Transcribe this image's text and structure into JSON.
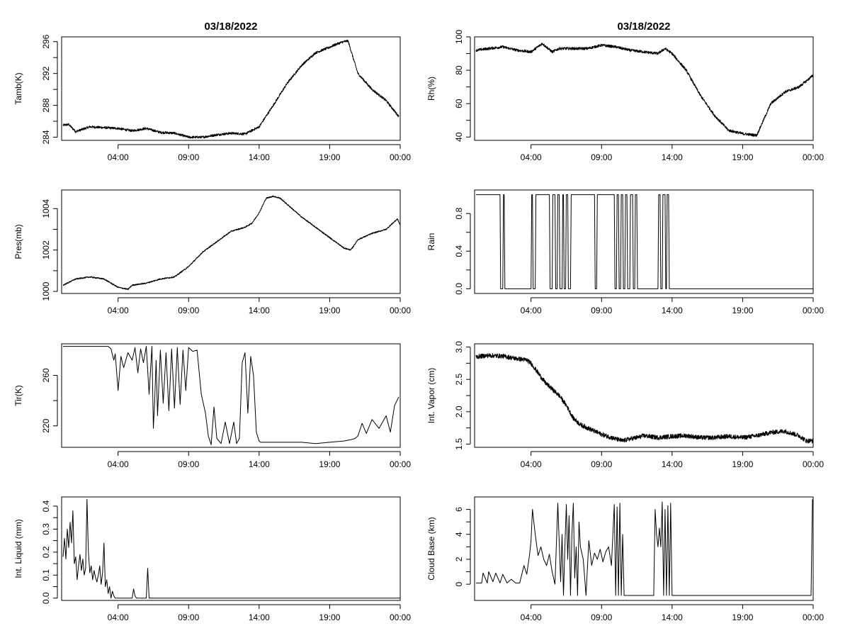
{
  "figure": {
    "date_title": "03/18/2022"
  },
  "chart_data": [
    {
      "id": "tamb",
      "type": "line",
      "title": "03/18/2022",
      "ylabel": "Tamb(K)",
      "xlim": [
        0,
        24
      ],
      "ylim": [
        283.6,
        296.6
      ],
      "yticks": [
        284,
        288,
        292,
        296
      ],
      "ytick_labels": [
        "284",
        "288",
        "292",
        "296"
      ],
      "xticks": [
        4,
        9,
        14,
        19,
        24
      ],
      "xtick_labels": [
        "04:00",
        "09:00",
        "14:00",
        "19:00",
        "00:00"
      ],
      "noise": 0.15,
      "x": [
        0.1,
        0.5,
        1,
        2,
        3,
        4,
        5,
        6,
        7,
        8,
        9,
        10,
        11,
        12,
        13,
        14,
        15,
        16,
        17,
        18,
        19,
        19.5,
        20,
        20.3,
        21,
        22,
        23,
        23.9
      ],
      "y": [
        285.5,
        285.6,
        284.7,
        285.3,
        285.2,
        285.1,
        284.8,
        285.1,
        284.6,
        284.5,
        284.0,
        284.0,
        284.3,
        284.5,
        284.4,
        285.3,
        288.0,
        290.8,
        293.0,
        294.6,
        295.3,
        295.7,
        296.0,
        296.1,
        292.0,
        290.0,
        288.6,
        286.6
      ]
    },
    {
      "id": "rh",
      "type": "line",
      "title": "03/18/2022",
      "ylabel": "Rh(%)",
      "xlim": [
        0,
        24
      ],
      "ylim": [
        38,
        100
      ],
      "yticks": [
        40,
        60,
        80,
        100
      ],
      "ytick_labels": [
        "40",
        "60",
        "80",
        "100"
      ],
      "xticks": [
        4,
        9,
        14,
        19,
        24
      ],
      "xtick_labels": [
        "04:00",
        "09:00",
        "14:00",
        "19:00",
        "00:00"
      ],
      "noise": 0.8,
      "x": [
        0.1,
        1,
        2,
        3,
        4,
        4.8,
        5.5,
        6,
        7,
        8,
        9,
        10,
        11,
        12,
        13,
        13.5,
        14,
        15,
        16,
        17,
        18,
        19,
        20,
        21,
        22,
        23,
        24
      ],
      "y": [
        92,
        93,
        94,
        92,
        91,
        96,
        91,
        93,
        93,
        93,
        95,
        94,
        92,
        91,
        90,
        93,
        90,
        80,
        65,
        53,
        44,
        42,
        41,
        60,
        67,
        70,
        77
      ]
    },
    {
      "id": "pres",
      "type": "line",
      "title": "",
      "ylabel": "Pres(mb)",
      "xlim": [
        0,
        24
      ],
      "ylim": [
        999.9,
        1004.9
      ],
      "yticks": [
        1000,
        1002,
        1004
      ],
      "ytick_labels": [
        "1000",
        "1002",
        "1004"
      ],
      "xticks": [
        4,
        9,
        14,
        19,
        24
      ],
      "xtick_labels": [
        "04:00",
        "09:00",
        "14:00",
        "19:00",
        "00:00"
      ],
      "noise": 0.03,
      "x": [
        0.1,
        1,
        2,
        3,
        4,
        4.7,
        5,
        6,
        7,
        8,
        9,
        10,
        11,
        12,
        13,
        13.5,
        14,
        14.5,
        15,
        15.5,
        16,
        17,
        18,
        19,
        20,
        20.5,
        21,
        22,
        23,
        23.8,
        24
      ],
      "y": [
        1000.3,
        1000.6,
        1000.7,
        1000.6,
        1000.2,
        1000.1,
        1000.3,
        1000.4,
        1000.6,
        1000.7,
        1001.2,
        1001.9,
        1002.4,
        1002.9,
        1003.1,
        1003.3,
        1003.8,
        1004.5,
        1004.6,
        1004.5,
        1004.2,
        1003.6,
        1003.1,
        1002.6,
        1002.1,
        1002.0,
        1002.5,
        1002.8,
        1003.0,
        1003.5,
        1003.2
      ]
    },
    {
      "id": "rain",
      "type": "line",
      "title": "",
      "ylabel": "Rain",
      "xlim": [
        0,
        24
      ],
      "ylim": [
        -0.05,
        1.05
      ],
      "yticks": [
        0.0,
        0.4,
        0.8
      ],
      "ytick_labels": [
        "0.0",
        "0.4",
        "0.8"
      ],
      "xticks": [
        4,
        9,
        14,
        19,
        24
      ],
      "xtick_labels": [
        "04:00",
        "09:00",
        "14:00",
        "19:00",
        "00:00"
      ],
      "x": [
        0.1,
        1.8,
        1.85,
        2.0,
        2.05,
        2.1,
        2.15,
        4.0,
        4.05,
        4.1,
        4.15,
        4.3,
        4.35,
        5.3,
        5.35,
        5.5,
        5.55,
        5.7,
        5.75,
        5.85,
        5.9,
        6.0,
        6.05,
        6.2,
        6.25,
        6.3,
        6.35,
        6.45,
        6.5,
        6.6,
        6.65,
        6.8,
        6.85,
        8.5,
        8.55,
        8.65,
        8.7,
        9.9,
        9.95,
        10.05,
        10.1,
        10.2,
        10.25,
        10.35,
        10.4,
        10.5,
        10.55,
        10.65,
        10.7,
        10.8,
        10.85,
        11.0,
        11.05,
        11.2,
        11.25,
        11.35,
        11.4,
        11.5,
        11.55,
        13.0,
        13.05,
        13.15,
        13.2,
        13.3,
        13.35,
        13.5,
        13.55,
        13.6,
        13.65,
        13.75,
        13.8,
        13.9,
        13.95,
        24
      ],
      "y": [
        1,
        1,
        0,
        0,
        1,
        1,
        0,
        0,
        1,
        1,
        0,
        0,
        1,
        1,
        0,
        0,
        1,
        1,
        0,
        0,
        1,
        1,
        0,
        0,
        1,
        1,
        0,
        0,
        1,
        1,
        0,
        0,
        1,
        1,
        0,
        0,
        1,
        1,
        0,
        0,
        1,
        1,
        0,
        0,
        1,
        1,
        0,
        0,
        1,
        1,
        0,
        0,
        1,
        1,
        0,
        0,
        1,
        1,
        0,
        0,
        1,
        1,
        0,
        0,
        1,
        1,
        0,
        0,
        1,
        1,
        0,
        0,
        0,
        0
      ]
    },
    {
      "id": "tir",
      "type": "line",
      "title": "",
      "ylabel": "Tir(K)",
      "xlim": [
        0,
        24
      ],
      "ylim": [
        203,
        285
      ],
      "yticks": [
        220,
        260
      ],
      "ytick_labels": [
        "220",
        "260"
      ],
      "xticks": [
        4,
        9,
        14,
        19,
        24
      ],
      "xtick_labels": [
        "04:00",
        "09:00",
        "14:00",
        "19:00",
        "00:00"
      ],
      "x": [
        0.1,
        3.0,
        3.3,
        3.5,
        3.7,
        3.8,
        4.0,
        4.2,
        4.4,
        4.7,
        5.0,
        5.2,
        5.4,
        5.6,
        5.8,
        6.0,
        6.2,
        6.4,
        6.5,
        6.6,
        6.7,
        6.8,
        7.0,
        7.2,
        7.4,
        7.6,
        7.8,
        8.0,
        8.2,
        8.4,
        8.6,
        8.8,
        9.0,
        9.3,
        9.6,
        9.9,
        10.2,
        10.4,
        10.6,
        10.8,
        11.0,
        11.3,
        11.6,
        11.9,
        12.2,
        12.4,
        12.6,
        12.8,
        13.0,
        13.2,
        13.4,
        13.6,
        13.8,
        14.0,
        14.1,
        14.3,
        15,
        16,
        17,
        18,
        19,
        20,
        20.5,
        20.8,
        21.0,
        21.3,
        21.6,
        22,
        22.5,
        23,
        23.3,
        23.6,
        23.9
      ],
      "y": [
        283,
        283,
        283,
        281,
        272,
        277,
        248,
        275,
        266,
        278,
        272,
        282,
        262,
        281,
        270,
        283,
        245,
        283,
        218,
        240,
        272,
        228,
        280,
        238,
        278,
        232,
        281,
        234,
        282,
        237,
        280,
        248,
        282,
        279,
        280,
        245,
        230,
        212,
        205,
        235,
        210,
        206,
        223,
        206,
        223,
        206,
        210,
        270,
        278,
        230,
        275,
        260,
        215,
        208,
        207,
        207,
        207,
        207,
        207,
        206,
        207,
        208,
        209,
        210,
        212,
        222,
        214,
        225,
        218,
        228,
        215,
        236,
        243
      ]
    },
    {
      "id": "vapor",
      "type": "line",
      "title": "",
      "ylabel": "Int. Vapor (cm)",
      "xlim": [
        0,
        24
      ],
      "ylim": [
        1.45,
        3.05
      ],
      "yticks": [
        1.5,
        2.0,
        2.5,
        3.0
      ],
      "ytick_labels": [
        "1.5",
        "2.0",
        "2.5",
        "3.0"
      ],
      "xticks": [
        4,
        9,
        14,
        19,
        24
      ],
      "xtick_labels": [
        "04:00",
        "09:00",
        "14:00",
        "19:00",
        "00:00"
      ],
      "noise": 0.035,
      "x": [
        0.1,
        1,
        2,
        3,
        3.7,
        4,
        4.5,
        5,
        5.5,
        6,
        6.5,
        7,
        7.5,
        8,
        9,
        10,
        10.5,
        11,
        11.5,
        12,
        13,
        14,
        15,
        16,
        17,
        18,
        19,
        20,
        21,
        22,
        23,
        23.5,
        24
      ],
      "y": [
        2.85,
        2.87,
        2.86,
        2.82,
        2.8,
        2.75,
        2.6,
        2.45,
        2.35,
        2.25,
        2.1,
        1.9,
        1.8,
        1.75,
        1.65,
        1.58,
        1.55,
        1.58,
        1.6,
        1.63,
        1.6,
        1.62,
        1.63,
        1.6,
        1.6,
        1.62,
        1.6,
        1.63,
        1.68,
        1.7,
        1.63,
        1.55,
        1.55
      ]
    },
    {
      "id": "liquid",
      "type": "line",
      "title": "",
      "ylabel": "Int. Liquid (mm)",
      "xlim": [
        0,
        24
      ],
      "ylim": [
        -0.01,
        0.44
      ],
      "yticks": [
        0.0,
        0.1,
        0.2,
        0.3,
        0.4
      ],
      "ytick_labels": [
        "0.0",
        "0.1",
        "0.2",
        "0.3",
        "0.4"
      ],
      "xticks": [
        4,
        9,
        14,
        19,
        24
      ],
      "xtick_labels": [
        "04:00",
        "09:00",
        "14:00",
        "19:00",
        "00:00"
      ],
      "x": [
        0.1,
        0.2,
        0.3,
        0.4,
        0.5,
        0.6,
        0.7,
        0.8,
        0.9,
        1.0,
        1.1,
        1.2,
        1.3,
        1.4,
        1.5,
        1.6,
        1.7,
        1.8,
        1.9,
        2.0,
        2.1,
        2.2,
        2.3,
        2.4,
        2.5,
        2.6,
        2.7,
        2.8,
        2.9,
        3.0,
        3.1,
        3.2,
        3.3,
        3.4,
        3.5,
        3.6,
        3.7,
        3.8,
        3.9,
        4.0,
        4.5,
        5.0,
        5.1,
        5.2,
        5.3,
        6.0,
        6.1,
        6.2,
        6.3,
        24
      ],
      "y": [
        0.18,
        0.26,
        0.17,
        0.3,
        0.22,
        0.33,
        0.24,
        0.38,
        0.15,
        0.18,
        0.08,
        0.14,
        0.19,
        0.12,
        0.17,
        0.1,
        0.13,
        0.43,
        0.2,
        0.11,
        0.14,
        0.08,
        0.12,
        0.09,
        0.07,
        0.1,
        0.14,
        0.06,
        0.11,
        0.24,
        0.05,
        0.08,
        0.02,
        0.05,
        0.0,
        0.03,
        0.01,
        0.0,
        0.0,
        0.0,
        0.0,
        0.0,
        0.04,
        0.01,
        0.0,
        0.0,
        0.13,
        0.0,
        0.0,
        0.0
      ]
    },
    {
      "id": "cloudbase",
      "type": "line",
      "title": "",
      "ylabel": "Cloud Base (km)",
      "xlim": [
        0,
        24
      ],
      "ylim": [
        -1.3,
        7.0
      ],
      "yticks": [
        0,
        2,
        4,
        6
      ],
      "ytick_labels": [
        "0",
        "2",
        "4",
        "6"
      ],
      "xticks": [
        4,
        9,
        14,
        19,
        24
      ],
      "xtick_labels": [
        "04:00",
        "09:00",
        "14:00",
        "19:00",
        "00:00"
      ],
      "x": [
        0.1,
        0.5,
        0.6,
        0.9,
        1.0,
        1.3,
        1.5,
        1.8,
        2.0,
        2.3,
        2.6,
        2.9,
        3.2,
        3.5,
        3.7,
        3.9,
        4.0,
        4.1,
        4.3,
        4.5,
        4.7,
        4.9,
        5.1,
        5.3,
        5.5,
        5.7,
        5.9,
        6.1,
        6.2,
        6.3,
        6.4,
        6.5,
        6.6,
        6.7,
        6.8,
        6.9,
        7.0,
        7.1,
        7.2,
        7.3,
        7.4,
        7.5,
        7.7,
        7.9,
        8.1,
        8.3,
        8.5,
        8.7,
        8.9,
        9.1,
        9.3,
        9.5,
        9.7,
        9.9,
        10.0,
        10.1,
        10.2,
        10.3,
        10.4,
        10.5,
        10.6,
        10.7,
        10.8,
        10.9,
        11.0,
        11.5,
        12.0,
        12.5,
        12.7,
        12.8,
        12.9,
        13.0,
        13.1,
        13.2,
        13.3,
        13.4,
        13.5,
        13.6,
        13.7,
        13.8,
        13.9,
        14.0,
        14.1,
        15,
        20,
        23.8,
        23.85,
        23.95
      ],
      "y": [
        0.1,
        0.1,
        0.9,
        0.1,
        1.0,
        0.2,
        0.9,
        0.1,
        0.8,
        0.1,
        0.4,
        0.1,
        0.1,
        1.5,
        0.8,
        2.4,
        3.5,
        6.0,
        4.0,
        2.3,
        3.0,
        2.0,
        1.5,
        2.4,
        1.0,
        0.0,
        6.5,
        0.2,
        4.0,
        -0.9,
        3.0,
        6.4,
        2.0,
        5.5,
        -0.9,
        4.0,
        6.5,
        0.5,
        3.0,
        -0.9,
        5.0,
        3.0,
        2.0,
        -0.9,
        3.5,
        1.5,
        2.5,
        2.0,
        2.8,
        1.8,
        2.6,
        3.0,
        1.5,
        6.4,
        -0.9,
        6.2,
        -0.9,
        6.5,
        -0.9,
        4.0,
        -0.9,
        -0.9,
        -0.9,
        -0.9,
        -0.9,
        -0.9,
        -0.9,
        -0.9,
        -0.9,
        6.0,
        4.0,
        3.0,
        4.5,
        3.0,
        6.6,
        -0.9,
        6.0,
        -0.9,
        6.3,
        -0.9,
        6.5,
        -0.9,
        -0.9,
        -0.9,
        -0.9,
        -0.9,
        -0.9,
        6.8
      ]
    }
  ]
}
